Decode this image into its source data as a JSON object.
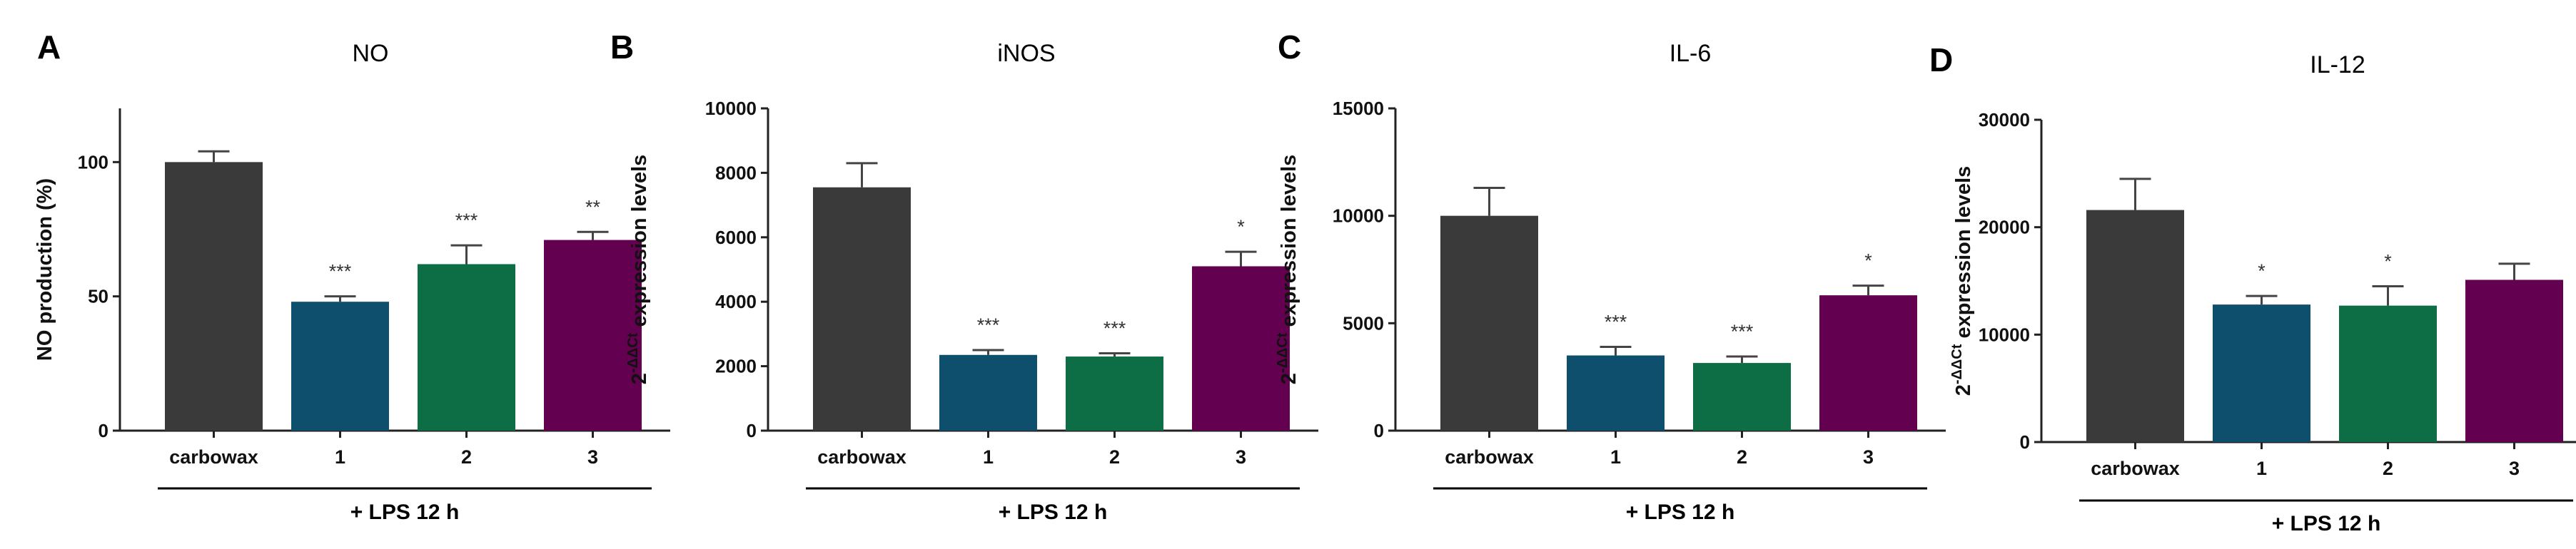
{
  "colors": {
    "carbowax": "#3a3a3a",
    "1": "#0d4f6c",
    "2": "#0d6e45",
    "3": "#63004f"
  },
  "chart_data": [
    {
      "type": "bar",
      "letter": "A",
      "title": "NO",
      "ylabel": "NO production (%)",
      "ylabel_prefix": "",
      "ylabel_sup": "",
      "categories": [
        "carbowax",
        "1",
        "2",
        "3"
      ],
      "values": [
        100,
        48,
        62,
        71
      ],
      "errors": [
        4,
        2,
        7,
        3
      ],
      "significance": [
        "",
        "***",
        "***",
        "**"
      ],
      "yticks": [
        0,
        50,
        100
      ],
      "ylim": [
        0,
        120
      ],
      "group_label": "+ LPS 12 h"
    },
    {
      "type": "bar",
      "letter": "B",
      "title": "iNOS",
      "ylabel": " expression levels",
      "ylabel_prefix": "2",
      "ylabel_sup": "-ΔΔCt",
      "categories": [
        "carbowax",
        "1",
        "2",
        "3"
      ],
      "values": [
        7550,
        2350,
        2300,
        5100
      ],
      "errors": [
        750,
        150,
        100,
        450
      ],
      "significance": [
        "",
        "***",
        "***",
        "*"
      ],
      "yticks": [
        0,
        2000,
        4000,
        6000,
        8000,
        10000
      ],
      "ylim": [
        0,
        10000
      ],
      "group_label": "+ LPS 12 h"
    },
    {
      "type": "bar",
      "letter": "C",
      "title": "IL-6",
      "ylabel": " expression levels",
      "ylabel_prefix": "2",
      "ylabel_sup": "-ΔΔCt",
      "categories": [
        "carbowax",
        "1",
        "2",
        "3"
      ],
      "values": [
        10000,
        3500,
        3150,
        6300
      ],
      "errors": [
        1300,
        400,
        300,
        450
      ],
      "significance": [
        "",
        "***",
        "***",
        "*"
      ],
      "yticks": [
        0,
        5000,
        10000,
        15000
      ],
      "ylim": [
        0,
        15000
      ],
      "group_label": "+ LPS 12 h"
    },
    {
      "type": "bar",
      "letter": "D",
      "title": "IL-12",
      "ylabel": " expression levels",
      "ylabel_prefix": "2",
      "ylabel_sup": "-ΔΔCt",
      "categories": [
        "carbowax",
        "1",
        "2",
        "3"
      ],
      "values": [
        21600,
        12800,
        12700,
        15100
      ],
      "errors": [
        2900,
        800,
        1800,
        1500
      ],
      "significance": [
        "",
        "*",
        "*",
        ""
      ],
      "yticks": [
        0,
        10000,
        20000,
        30000
      ],
      "ylim": [
        0,
        30000
      ],
      "group_label": "+ LPS 12 h"
    }
  ]
}
